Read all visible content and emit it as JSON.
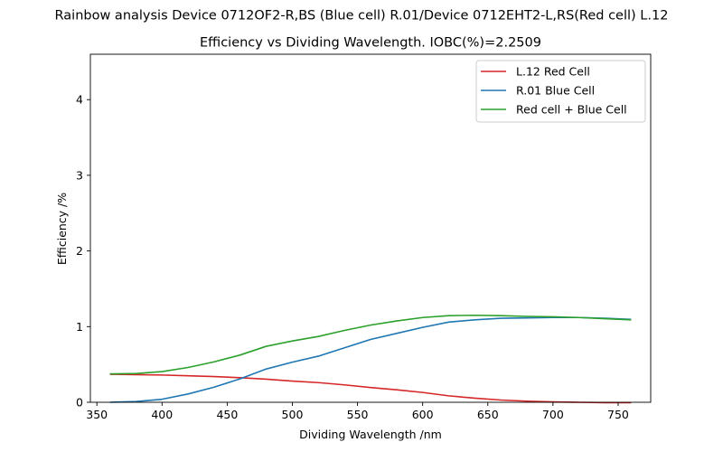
{
  "chart_data": {
    "type": "line",
    "suptitle": "Rainbow analysis Device 0712OF2-R,BS (Blue cell) R.01/Device 0712EHT2-L,RS(Red cell) L.12",
    "title": "Efficiency vs Dividing Wavelength. IOBC(%)=2.2509",
    "xlabel": "Dividing Wavelength /nm",
    "ylabel": "Efficiency /%",
    "xlim": [
      345,
      775
    ],
    "ylim": [
      0,
      4.6
    ],
    "xticks": [
      350,
      400,
      450,
      500,
      550,
      600,
      650,
      700,
      750
    ],
    "yticks": [
      0,
      1,
      2,
      3,
      4
    ],
    "grid": false,
    "legend_position": "top-right",
    "x": [
      360,
      380,
      400,
      420,
      440,
      460,
      480,
      500,
      520,
      540,
      560,
      580,
      600,
      620,
      640,
      660,
      680,
      700,
      720,
      740,
      760
    ],
    "series": [
      {
        "name": "L.12 Red Cell",
        "color": "#d62728",
        "values": [
          0.37,
          0.365,
          0.36,
          0.35,
          0.34,
          0.325,
          0.305,
          0.28,
          0.26,
          0.23,
          0.195,
          0.165,
          0.13,
          0.085,
          0.055,
          0.03,
          0.015,
          0.005,
          0.0,
          -0.005,
          -0.005
        ]
      },
      {
        "name": "R.01 Blue Cell",
        "color": "#1f77b4",
        "values": [
          0.0,
          0.01,
          0.04,
          0.11,
          0.2,
          0.31,
          0.44,
          0.53,
          0.61,
          0.72,
          0.83,
          0.91,
          0.99,
          1.06,
          1.09,
          1.11,
          1.115,
          1.12,
          1.12,
          1.11,
          1.095
        ]
      },
      {
        "name": "Red cell + Blue Cell",
        "color": "#2ca02c",
        "values": [
          0.375,
          0.38,
          0.405,
          0.46,
          0.535,
          0.625,
          0.74,
          0.81,
          0.87,
          0.95,
          1.02,
          1.075,
          1.12,
          1.145,
          1.15,
          1.145,
          1.135,
          1.13,
          1.12,
          1.105,
          1.09
        ]
      }
    ]
  }
}
